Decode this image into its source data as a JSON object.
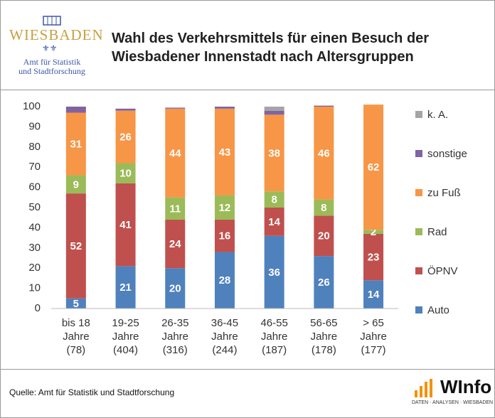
{
  "header": {
    "logo": "WIESBADEN",
    "office": "Amt für Statistik\nund Stadtforschung"
  },
  "chart_data": {
    "type": "stacked_bar",
    "title": "Wahl des Verkehrsmittels für einen Besuch der\nWiesbadener Innenstadt nach Altersgruppen",
    "categories": [
      "bis 18\nJahre\n(78)",
      "19-25\nJahre\n(404)",
      "26-35\nJahre\n(316)",
      "36-45\nJahre\n(244)",
      "46-55\nJahre\n(187)",
      "56-65\nJahre\n(178)",
      "> 65\nJahre\n(177)"
    ],
    "series": [
      {
        "name": "Auto",
        "color": "#4f81bd",
        "values": [
          5,
          21,
          20,
          28,
          36,
          26,
          14
        ],
        "data_labels": true
      },
      {
        "name": "ÖPNV",
        "color": "#c0504d",
        "values": [
          52,
          41,
          24,
          16,
          14,
          20,
          23
        ],
        "data_labels": true
      },
      {
        "name": "Rad",
        "color": "#9bbb59",
        "values": [
          9,
          10,
          11,
          12,
          8,
          8,
          2
        ],
        "data_labels": true
      },
      {
        "name": "zu Fuß",
        "color": "#f79646",
        "values": [
          31,
          26,
          44,
          43,
          38,
          46,
          62
        ],
        "data_labels": true
      },
      {
        "name": "sonstige",
        "color": "#8064a2",
        "values": [
          3,
          1,
          0.5,
          1,
          2,
          0.5,
          0
        ]
      },
      {
        "name": "k. A.",
        "color": "#a5a5a5",
        "values": [
          0,
          0,
          0,
          0,
          2,
          0,
          0
        ]
      }
    ],
    "ylim": [
      0,
      100
    ],
    "yticks": [
      0,
      10,
      20,
      30,
      40,
      50,
      60,
      70,
      80,
      90,
      100
    ],
    "grid": false,
    "legend": "right"
  },
  "footer": {
    "source": "Quelle: Amt für Statistik und Stadtforschung",
    "brand": "WInfo",
    "tagline": "DATEN · ANALYSEN · WIESBADEN"
  }
}
